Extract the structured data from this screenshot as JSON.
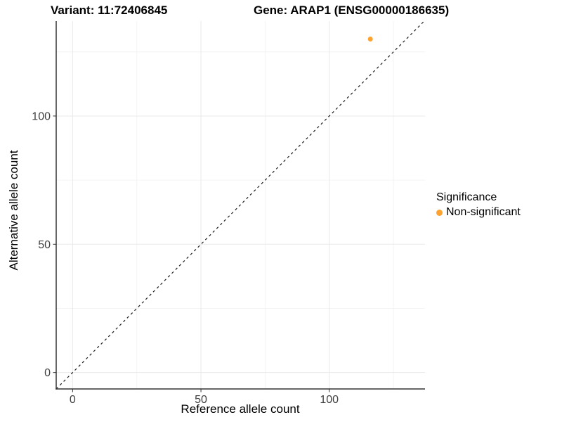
{
  "figure": {
    "title_variant": "Variant: 11:72406845",
    "title_gene": "Gene: ARAP1 (ENSG00000186635)"
  },
  "chart_data": {
    "type": "scatter",
    "title": "Variant: 11:72406845   Gene: ARAP1 (ENSG00000186635)",
    "xlabel": "Reference allele count",
    "ylabel": "Alternative allele count",
    "xlim": [
      -6.4,
      137.3
    ],
    "ylim": [
      -6.4,
      137.0
    ],
    "x_ticks": [
      0,
      50,
      100
    ],
    "y_ticks": [
      0,
      50,
      100
    ],
    "x_minor_gridlines": [
      25,
      75,
      125
    ],
    "y_minor_gridlines": [
      25,
      75,
      125
    ],
    "grid": true,
    "reference_line": {
      "type": "identity y=x",
      "style": "dashed",
      "color": "#1a1a1a"
    },
    "series": [
      {
        "name": "Non-significant",
        "color": "#FFA330",
        "points": [
          {
            "x": 116,
            "y": 130
          }
        ]
      }
    ],
    "legend": {
      "title": "Significance",
      "position": "right",
      "entries": [
        {
          "label": "Non-significant",
          "color": "#FFA330"
        }
      ]
    }
  }
}
